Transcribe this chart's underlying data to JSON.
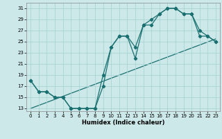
{
  "xlabel": "Humidex (Indice chaleur)",
  "bg_color": "#cce8e8",
  "grid_color": "#aad4d4",
  "line_color": "#1a7070",
  "xlim": [
    -0.5,
    23.5
  ],
  "ylim": [
    12.5,
    32.0
  ],
  "xticks": [
    0,
    1,
    2,
    3,
    4,
    5,
    6,
    7,
    8,
    9,
    10,
    11,
    12,
    13,
    14,
    15,
    16,
    17,
    18,
    19,
    20,
    21,
    22,
    23
  ],
  "yticks": [
    13,
    15,
    17,
    19,
    21,
    23,
    25,
    27,
    29,
    31
  ],
  "line1_x": [
    0,
    1,
    2,
    3,
    4,
    5,
    6,
    7,
    8,
    9,
    10,
    11,
    12,
    13,
    14,
    15,
    16,
    17,
    18,
    19,
    20,
    21,
    22,
    23
  ],
  "line1_y": [
    18,
    16,
    16,
    15,
    15,
    13,
    13,
    13,
    13,
    19,
    24,
    26,
    26,
    22,
    28,
    28,
    30,
    31,
    31,
    30,
    30,
    27,
    26,
    25
  ],
  "line2_x": [
    0,
    1,
    2,
    3,
    4,
    5,
    6,
    7,
    8,
    9,
    10,
    11,
    12,
    13,
    14,
    15,
    16,
    17,
    18,
    19,
    20,
    21,
    22,
    23
  ],
  "line2_y": [
    18,
    16,
    16,
    15,
    15,
    13,
    13,
    13,
    13,
    17,
    24,
    26,
    26,
    24,
    28,
    29,
    30,
    31,
    31,
    30,
    30,
    26,
    26,
    25
  ],
  "line3_x": [
    0,
    23
  ],
  "line3_y": [
    13,
    25.5
  ]
}
